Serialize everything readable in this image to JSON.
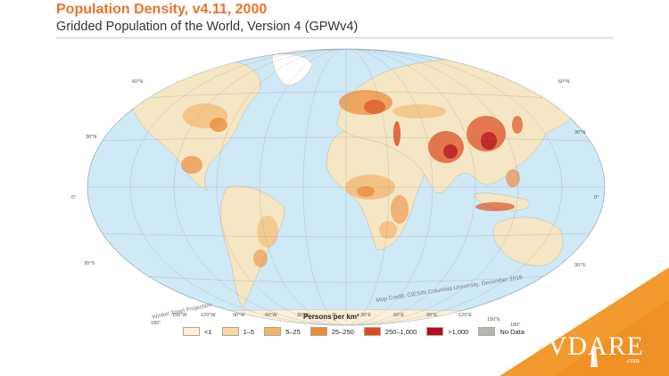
{
  "header": {
    "title": "Population Density, v4.11, 2000",
    "subtitle": "Gridded Population of the World, Version 4 (GPWv4)"
  },
  "map": {
    "projection": "Winkel Tripel Projection",
    "credit": "Map Credit: CIESIN Columbia University, December 2018",
    "latitude_labels": [
      "60°N",
      "30°N",
      "0°",
      "30°S"
    ],
    "longitude_labels": [
      "180°",
      "150°W",
      "120°W",
      "90°W",
      "60°W",
      "30°W",
      "0°",
      "30°E",
      "60°E",
      "90°E",
      "120°E",
      "150°E",
      "180°"
    ],
    "colors": {
      "ocean": "#cfe9f7",
      "land": "#f5e6c4"
    }
  },
  "legend": {
    "title": "Persons per km²",
    "items": [
      {
        "label": "<1",
        "color": "#fbf0d6"
      },
      {
        "label": "1–5",
        "color": "#f7d6a8"
      },
      {
        "label": "5–25",
        "color": "#f3b46a"
      },
      {
        "label": "25–250",
        "color": "#ec8a3a"
      },
      {
        "label": "250–1,000",
        "color": "#de4a1f"
      },
      {
        "label": ">1,000",
        "color": "#b30d1e"
      },
      {
        "label": "No Data",
        "color": "#b5b5b5"
      }
    ]
  },
  "logo": {
    "text": "VDARE",
    "suffix": ".com",
    "accent": "#f29a2e"
  }
}
